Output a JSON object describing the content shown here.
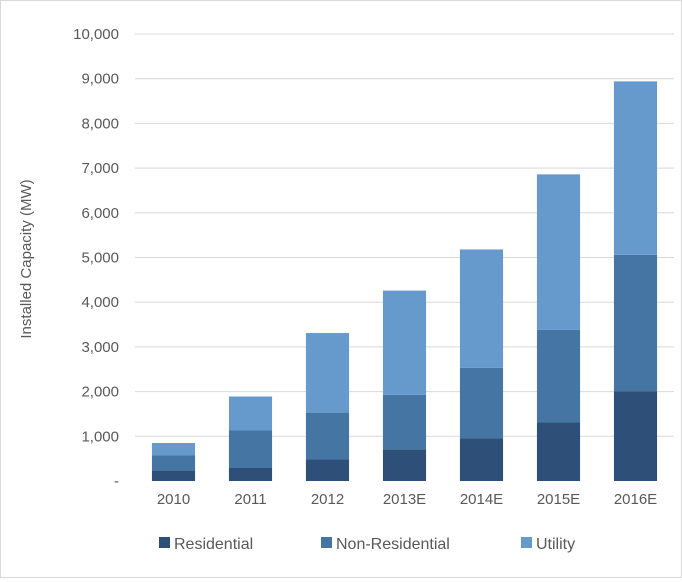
{
  "chart_data": {
    "type": "bar",
    "stacked": true,
    "categories": [
      "2010",
      "2011",
      "2012",
      "2013E",
      "2014E",
      "2015E",
      "2016E"
    ],
    "series": [
      {
        "name": "Residential",
        "color": "#2e4f78",
        "values": [
          240,
          300,
          480,
          710,
          950,
          1310,
          2010
        ]
      },
      {
        "name": "Non-Residential",
        "color": "#4475a3",
        "values": [
          330,
          830,
          1050,
          1220,
          1580,
          2070,
          3050
        ]
      },
      {
        "name": "Utility",
        "color": "#6699cc",
        "values": [
          280,
          760,
          1780,
          2330,
          2650,
          3480,
          3880
        ]
      }
    ],
    "ylabel": "Installed Capacity (MW)",
    "xlabel": "",
    "ylim": [
      0,
      10000
    ],
    "yticks": [
      0,
      1000,
      2000,
      3000,
      4000,
      5000,
      6000,
      7000,
      8000,
      9000,
      10000
    ],
    "ytick_labels": [
      "-",
      "1,000",
      "2,000",
      "3,000",
      "4,000",
      "5,000",
      "6,000",
      "7,000",
      "8,000",
      "9,000",
      "10,000"
    ],
    "grid": "horizontal",
    "legend_position": "bottom"
  }
}
